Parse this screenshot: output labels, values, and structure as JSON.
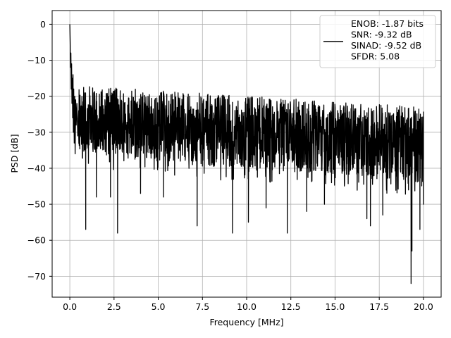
{
  "chart_data": {
    "type": "line",
    "title": "",
    "xlabel": "Frequency [MHz]",
    "ylabel": "PSD [dB]",
    "xlim": [
      -1.0,
      21.0
    ],
    "ylim": [
      -75.8,
      3.8
    ],
    "xticks": [
      0.0,
      2.5,
      5.0,
      7.5,
      10.0,
      12.5,
      15.0,
      17.5,
      20.0
    ],
    "xtick_labels": [
      "0.0",
      "2.5",
      "5.0",
      "7.5",
      "10.0",
      "12.5",
      "15.0",
      "17.5",
      "20.0"
    ],
    "yticks": [
      0,
      -10,
      -20,
      -30,
      -40,
      -50,
      -60,
      -70
    ],
    "ytick_labels": [
      "0",
      "−10",
      "−20",
      "−30",
      "−40",
      "−50",
      "−60",
      "−70"
    ],
    "grid": true,
    "legend_position": "top-right",
    "series": [
      {
        "name": "ENOB: -1.87 bits\nSNR: -9.32 dB\nSINAD: -9.52 dB\nSFDR: 5.08",
        "color": "#000000",
        "x_start": 0.0,
        "x_end": 20.0,
        "head": [
          [
            0.0,
            0.0
          ],
          [
            0.02,
            -5
          ],
          [
            0.04,
            -12
          ],
          [
            0.06,
            -8
          ],
          [
            0.08,
            -18
          ],
          [
            0.1,
            -11
          ],
          [
            0.12,
            -22
          ],
          [
            0.14,
            -15
          ],
          [
            0.16,
            -26
          ],
          [
            0.18,
            -14
          ],
          [
            0.2,
            -30
          ],
          [
            0.22,
            -18
          ],
          [
            0.25,
            -33
          ],
          [
            0.28,
            -20
          ],
          [
            0.3,
            -36
          ],
          [
            0.33,
            -21
          ],
          [
            0.36,
            -28
          ],
          [
            0.4,
            -22
          ],
          [
            0.45,
            -31
          ],
          [
            0.5,
            -24
          ]
        ],
        "envelope": {
          "upper_start": -17,
          "upper_end": -23,
          "lower_start": -36,
          "lower_end": -44,
          "mean_start": -27,
          "mean_end": -32
        },
        "spikes": [
          [
            0.9,
            -57
          ],
          [
            1.5,
            -48
          ],
          [
            2.3,
            -48
          ],
          [
            2.7,
            -58
          ],
          [
            4.0,
            -47
          ],
          [
            5.3,
            -48
          ],
          [
            7.2,
            -56
          ],
          [
            9.2,
            -58
          ],
          [
            10.1,
            -55
          ],
          [
            11.1,
            -51
          ],
          [
            12.3,
            -58
          ],
          [
            13.4,
            -52
          ],
          [
            14.4,
            -50
          ],
          [
            16.8,
            -54
          ],
          [
            17.0,
            -56
          ],
          [
            17.7,
            -53
          ],
          [
            19.3,
            -72
          ],
          [
            19.35,
            -63
          ],
          [
            19.8,
            -57
          ],
          [
            20.0,
            -50
          ]
        ]
      }
    ]
  }
}
